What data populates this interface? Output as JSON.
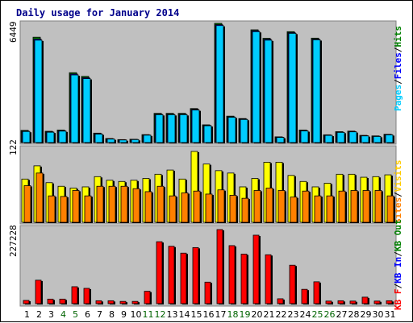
{
  "chart_data": [
    {
      "type": "bar",
      "title": "Daily usage for January 2014",
      "categories": [
        "1",
        "2",
        "3",
        "4",
        "5",
        "6",
        "7",
        "8",
        "9",
        "10",
        "11",
        "12",
        "13",
        "14",
        "15",
        "16",
        "17",
        "18",
        "19",
        "20",
        "21",
        "22",
        "23",
        "24",
        "25",
        "26",
        "27",
        "28",
        "29",
        "30",
        "31"
      ],
      "weekend_day_color": "#006400",
      "weekday_color": "#000000",
      "weekend_days": [
        "4",
        "5",
        "11",
        "12",
        "18",
        "19",
        "25",
        "26"
      ],
      "ymax_label": "6449",
      "right_axis_label": [
        "Pages",
        "/",
        "Files",
        "/",
        "Hits"
      ],
      "right_axis_colors": [
        "#00ccff",
        "#000000",
        "#0000ff",
        "#000000",
        "#008000"
      ],
      "ylim": [
        0,
        6449
      ],
      "series": [
        {
          "name": "Hits",
          "color": "#008000",
          "values": [
            660,
            5700,
            610,
            680,
            3780,
            3580,
            510,
            220,
            160,
            180,
            430,
            1580,
            1580,
            1580,
            1840,
            960,
            6449,
            1430,
            1300,
            6100,
            5640,
            310,
            6000,
            680,
            5650,
            420,
            590,
            620,
            390,
            360,
            450
          ]
        },
        {
          "name": "Files",
          "color": "#0000ff",
          "values": [
            620,
            5600,
            580,
            640,
            3710,
            3510,
            480,
            200,
            150,
            170,
            410,
            1540,
            1540,
            1540,
            1800,
            930,
            6380,
            1390,
            1270,
            6050,
            5590,
            290,
            5950,
            650,
            5600,
            400,
            560,
            590,
            370,
            340,
            430
          ]
        },
        {
          "name": "Pages",
          "color": "#00ccff",
          "values": [
            600,
            5540,
            560,
            620,
            3660,
            3460,
            460,
            190,
            140,
            160,
            400,
            1510,
            1510,
            1510,
            1760,
            910,
            6330,
            1370,
            1250,
            6000,
            5540,
            280,
            5910,
            630,
            5560,
            390,
            550,
            580,
            360,
            330,
            420
          ]
        }
      ]
    },
    {
      "type": "bar",
      "ymax_label": "122",
      "ylim": [
        0,
        122
      ],
      "right_axis_label": [
        "Visits",
        "/",
        "Sites"
      ],
      "right_axis_colors": [
        "#ffcc00",
        "#000000",
        "#ff8000"
      ],
      "series": [
        {
          "name": "Visits",
          "color": "#ffff00",
          "values": [
            72,
            94,
            66,
            60,
            57,
            59,
            76,
            70,
            68,
            70,
            73,
            80,
            87,
            72,
            118,
            97,
            86,
            82,
            59,
            73,
            100,
            100,
            78,
            68,
            59,
            65,
            80,
            80,
            75,
            76,
            79
          ]
        },
        {
          "name": "Sites",
          "color": "#ff8000",
          "values": [
            61,
            82,
            44,
            43,
            53,
            44,
            60,
            60,
            60,
            56,
            51,
            60,
            44,
            49,
            52,
            47,
            54,
            45,
            40,
            53,
            57,
            53,
            42,
            52,
            44,
            44,
            52,
            53,
            53,
            53,
            44
          ]
        }
      ]
    },
    {
      "type": "bar",
      "ymax_label": "227228",
      "ylim": [
        0,
        227228
      ],
      "right_axis_label": [
        "KB F",
        "/",
        "KB In",
        "/",
        "KB Out"
      ],
      "right_axis_colors": [
        "#ff0000",
        "#000000",
        "#0000ff",
        "#000000",
        "#008000"
      ],
      "series": [
        {
          "name": "KB F",
          "color": "#ff0000",
          "values": [
            10000,
            72000,
            14000,
            14000,
            52000,
            47000,
            9000,
            9000,
            7000,
            7000,
            38000,
            190000,
            176000,
            155000,
            172000,
            66000,
            227228,
            178000,
            152000,
            210000,
            150000,
            15000,
            118000,
            44000,
            67000,
            8000,
            9000,
            8000,
            20000,
            8000,
            9000
          ]
        }
      ]
    }
  ]
}
